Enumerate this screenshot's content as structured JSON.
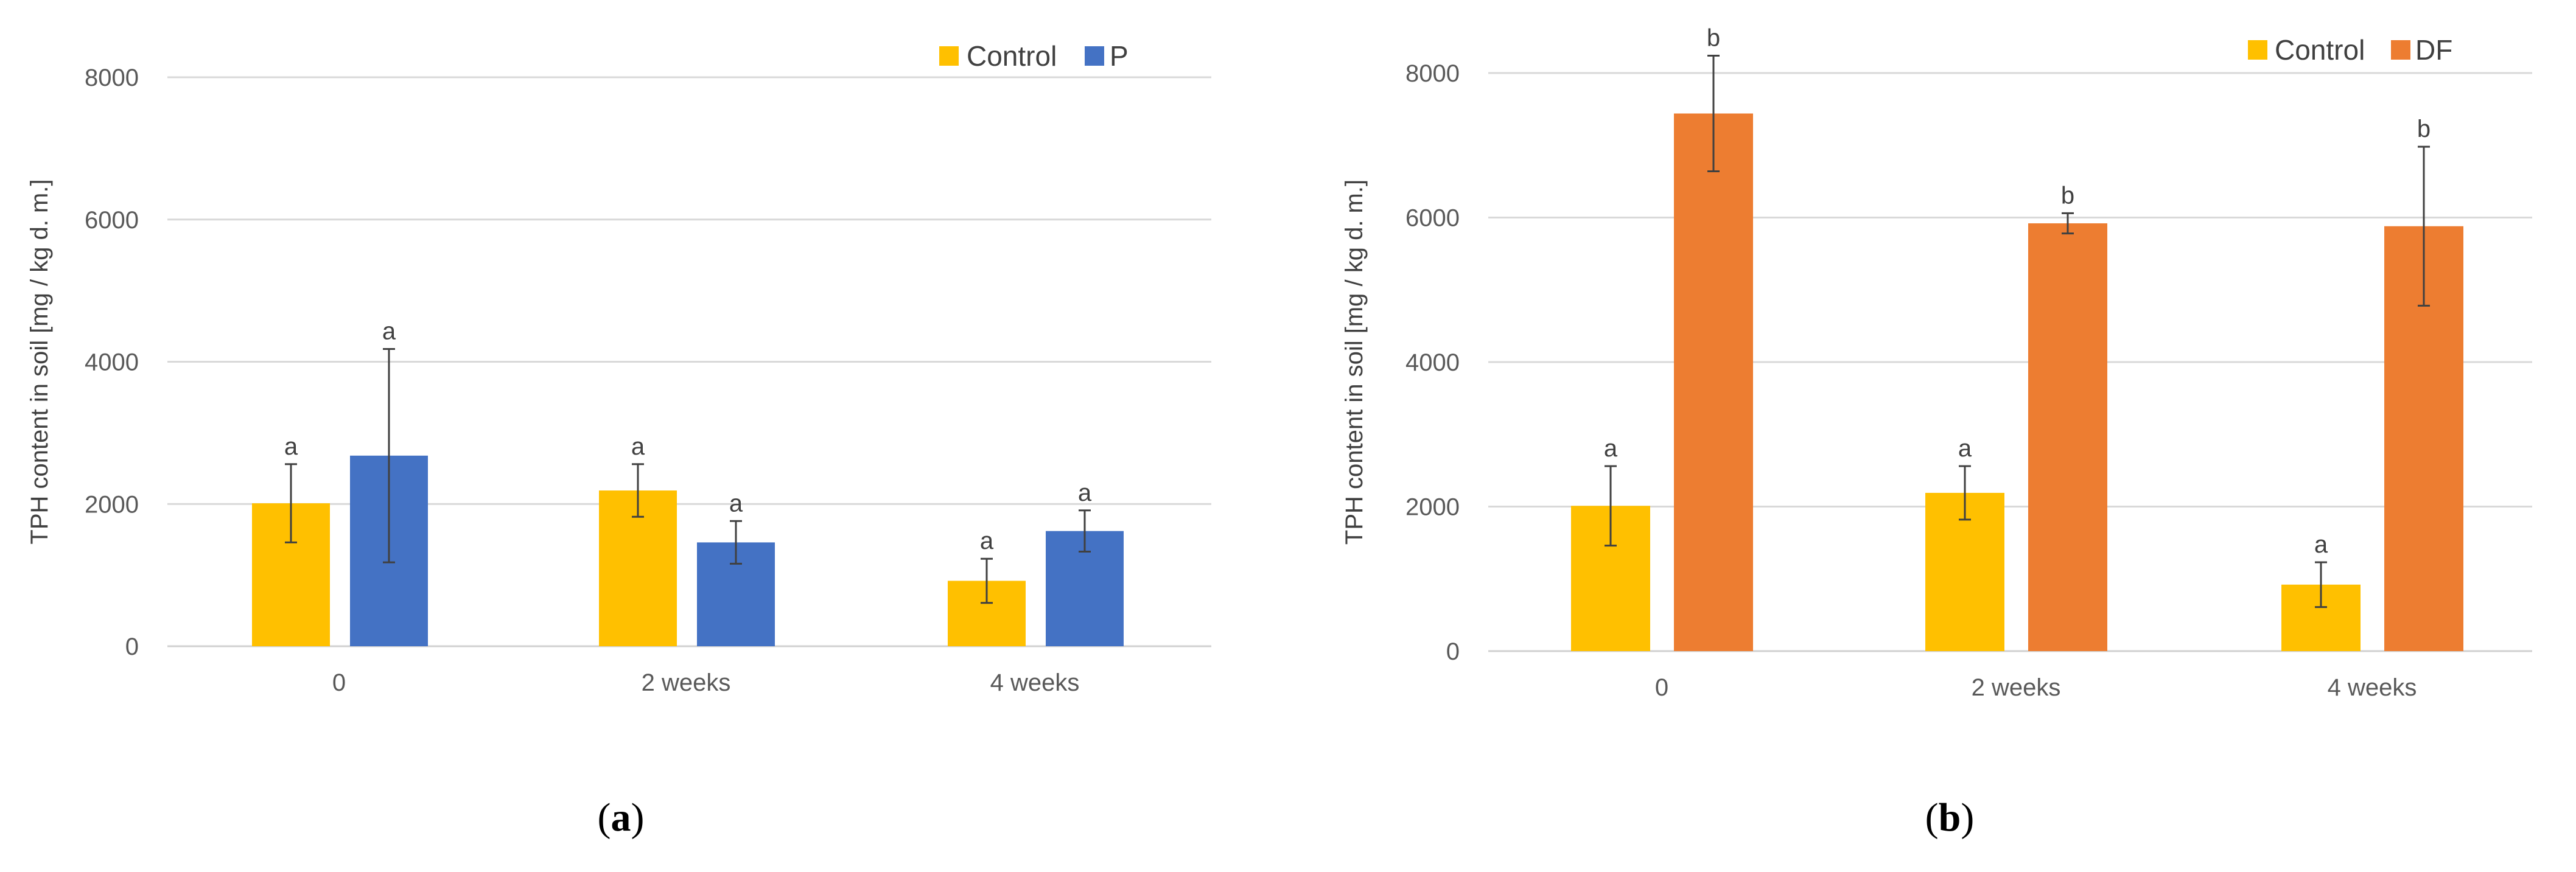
{
  "chart_data": [
    {
      "type": "bar",
      "panel_label": "a",
      "ylabel": "TPH content in soil [mg / kg d. m.]",
      "xlabel": "",
      "ylim": [
        0,
        8000
      ],
      "yticks": [
        0,
        2000,
        4000,
        6000,
        8000
      ],
      "categories": [
        "0",
        "2 weeks",
        "4 weeks"
      ],
      "legend_position": "top-right",
      "series": [
        {
          "name": "Control",
          "color": "#FFC000",
          "values": [
            2010,
            2190,
            920
          ],
          "errors": [
            550,
            370,
            310
          ],
          "letters": [
            "a",
            "a",
            "a"
          ]
        },
        {
          "name": "P",
          "color": "#4472C4",
          "values": [
            2680,
            1460,
            1620
          ],
          "errors": [
            1500,
            300,
            290
          ],
          "letters": [
            "a",
            "a",
            "a"
          ]
        }
      ]
    },
    {
      "type": "bar",
      "panel_label": "b",
      "ylabel": "TPH content in soil [mg / kg d. m.]",
      "xlabel": "",
      "ylim": [
        0,
        8000
      ],
      "yticks": [
        0,
        2000,
        4000,
        6000,
        8000
      ],
      "categories": [
        "0",
        "2 weeks",
        "4 weeks"
      ],
      "legend_position": "top-right",
      "series": [
        {
          "name": "Control",
          "color": "#FFC000",
          "values": [
            2010,
            2190,
            920
          ],
          "errors": [
            550,
            370,
            310
          ],
          "letters": [
            "a",
            "a",
            "a"
          ]
        },
        {
          "name": "DF",
          "color": "#ED7D31",
          "values": [
            7440,
            5920,
            5880
          ],
          "errors": [
            800,
            140,
            1100
          ],
          "letters": [
            "b",
            "b",
            "b"
          ]
        }
      ]
    }
  ]
}
